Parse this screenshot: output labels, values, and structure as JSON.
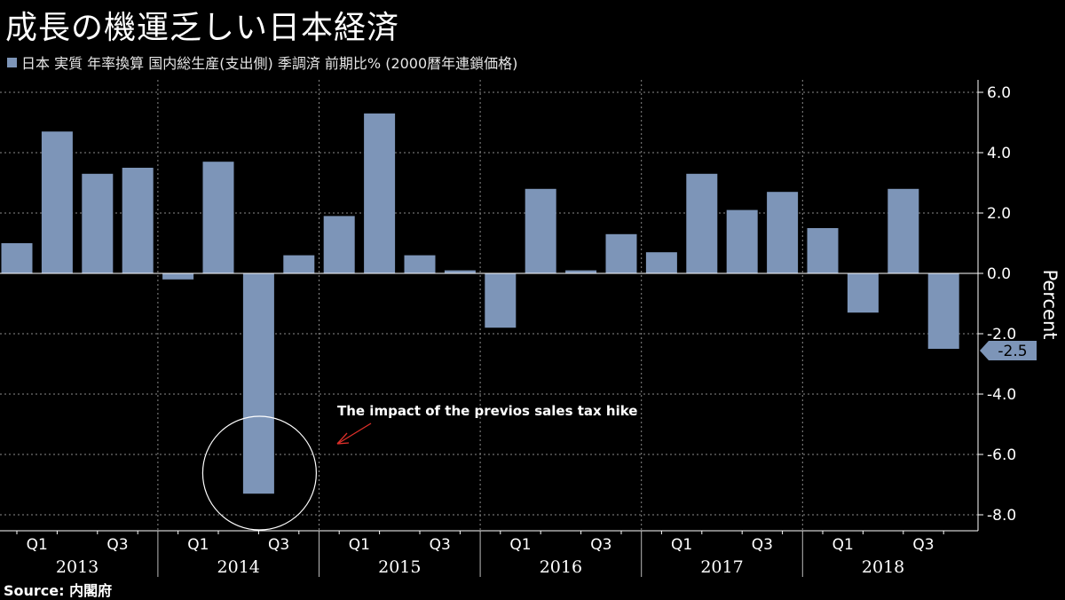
{
  "title": "成長の機運乏しい日本経済",
  "legend": {
    "label": "日本 実質 年率換算 国内総生産(支出側) 季調済 前期比% (2000暦年連鎖価格)"
  },
  "source": "Source: 内閣府",
  "colors": {
    "bar": "#7d95b8",
    "background": "#000000",
    "grid": "#8a8a8a",
    "text": "#ffffff",
    "annotation_arrow": "#e0302a"
  },
  "chart_data": {
    "type": "bar",
    "title": "成長の機運乏しい日本経済",
    "ylabel": "Percent",
    "xlabel": "",
    "ylim": [
      -8.5,
      6.5
    ],
    "yticks": [
      6.0,
      4.0,
      2.0,
      0.0,
      -2.0,
      -4.0,
      -6.0,
      -8.0
    ],
    "ytick_labels": [
      "6.0",
      "4.0",
      "2.0",
      "0.0",
      "-2.0",
      "-4.0",
      "-6.0",
      "-8.0"
    ],
    "grid": true,
    "series": [
      {
        "name": "日本 実質 年率換算 国内総生産(支出側) 季調済 前期比% (2000暦年連鎖価格)",
        "values": [
          1.0,
          4.7,
          3.3,
          3.5,
          -0.2,
          3.7,
          -7.3,
          0.6,
          1.9,
          5.3,
          0.6,
          0.1,
          -1.8,
          2.8,
          0.1,
          1.3,
          0.7,
          3.3,
          2.1,
          2.7,
          1.5,
          -1.3,
          2.8,
          -2.5
        ]
      }
    ],
    "quarter_tick_labels": [
      "Q1",
      "Q3"
    ],
    "years": [
      "2013",
      "2014",
      "2015",
      "2016",
      "2017",
      "2018"
    ],
    "last_value_label": "-2.5",
    "annotation": "The impact of the previos sales tax hike"
  }
}
